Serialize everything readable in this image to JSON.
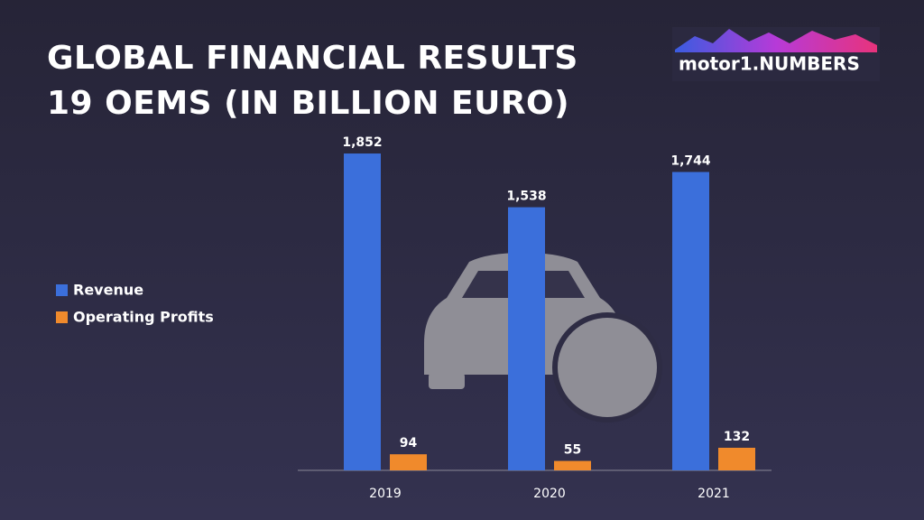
{
  "chart_data": {
    "type": "bar",
    "title": [
      "GLOBAL FINANCIAL RESULTS",
      "19 OEMS (IN BILLION EURO)"
    ],
    "logo": "motor1.NUMBERS",
    "categories": [
      "2019",
      "2020",
      "2021"
    ],
    "series": [
      {
        "name": "Revenue",
        "color": "#3b6fdb",
        "values": [
          1852,
          1538,
          1744
        ],
        "value_labels": [
          "1,852",
          "1,538",
          "1,744"
        ]
      },
      {
        "name": "Operating Profits",
        "color": "#f08a2c",
        "values": [
          94,
          55,
          132
        ]
      }
    ]
  }
}
